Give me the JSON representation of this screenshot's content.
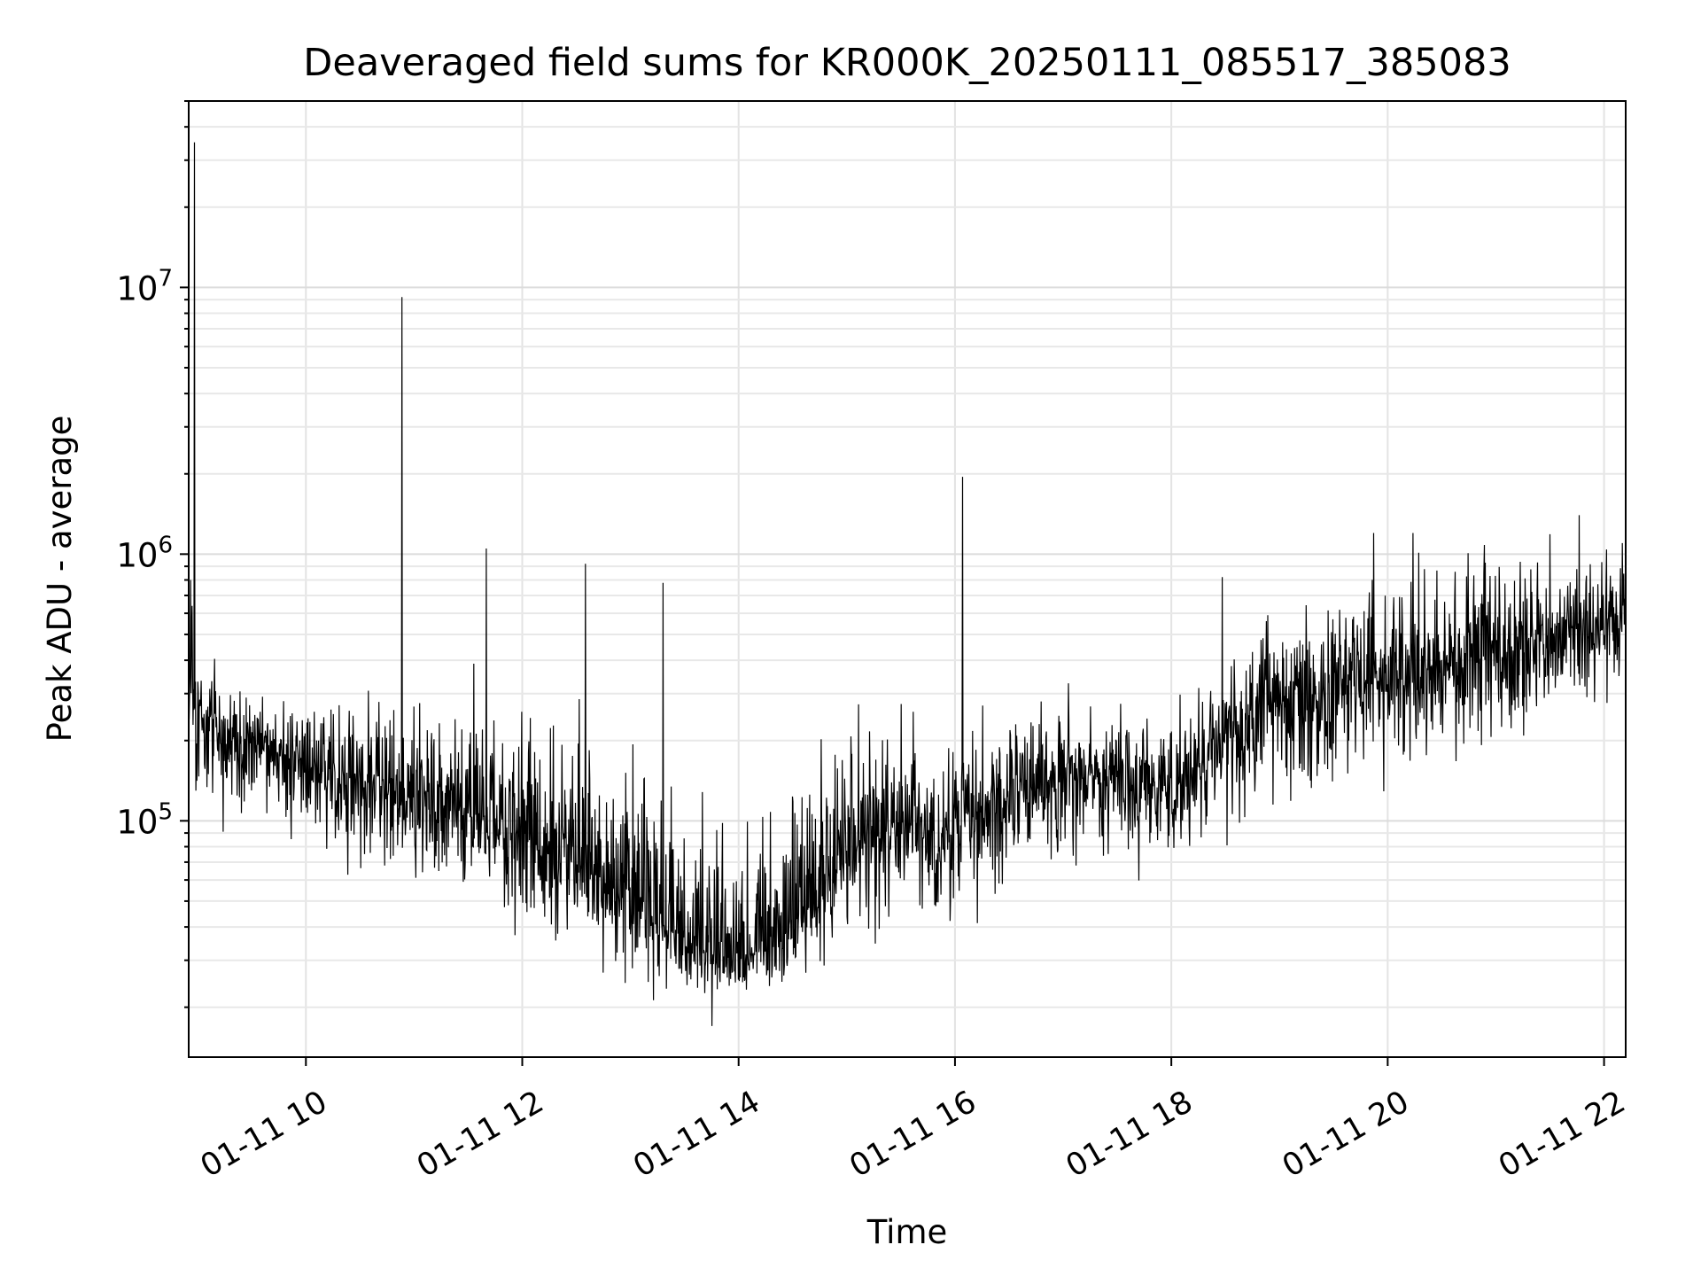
{
  "chart_data": {
    "type": "line",
    "title": "Deaveraged field sums for KR000K_20250111_085517_385083",
    "xlabel": "Time",
    "ylabel": "Peak ADU - average",
    "xlim": [
      "2025-01-11T08:55",
      "2025-01-11T22:12"
    ],
    "ylim": [
      13000,
      50000000
    ],
    "yscale": "log",
    "grid": true,
    "line_color": "#000000",
    "x_ticks": [
      {
        "t": "2025-01-11T10:00",
        "label": "01-11 10"
      },
      {
        "t": "2025-01-11T12:00",
        "label": "01-11 12"
      },
      {
        "t": "2025-01-11T14:00",
        "label": "01-11 14"
      },
      {
        "t": "2025-01-11T16:00",
        "label": "01-11 16"
      },
      {
        "t": "2025-01-11T18:00",
        "label": "01-11 18"
      },
      {
        "t": "2025-01-11T20:00",
        "label": "01-11 20"
      },
      {
        "t": "2025-01-11T22:00",
        "label": "01-11 22"
      }
    ],
    "y_ticks": [
      {
        "value": 100000,
        "base": "10",
        "exp": "5"
      },
      {
        "value": 1000000,
        "base": "10",
        "exp": "6"
      },
      {
        "value": 10000000,
        "base": "10",
        "exp": "7"
      }
    ],
    "series": [
      {
        "x": [
          "2025-01-11T08:55",
          "2025-01-11T09:00",
          "2025-01-11T09:15",
          "2025-01-11T09:30",
          "2025-01-11T09:45",
          "2025-01-11T10:00",
          "2025-01-11T10:15",
          "2025-01-11T10:30",
          "2025-01-11T10:45",
          "2025-01-11T11:00",
          "2025-01-11T11:15",
          "2025-01-11T11:30",
          "2025-01-11T11:45",
          "2025-01-11T12:00",
          "2025-01-11T12:15",
          "2025-01-11T12:30",
          "2025-01-11T12:45",
          "2025-01-11T13:00",
          "2025-01-11T13:15",
          "2025-01-11T13:30",
          "2025-01-11T13:45",
          "2025-01-11T14:00",
          "2025-01-11T14:15",
          "2025-01-11T14:30",
          "2025-01-11T14:45",
          "2025-01-11T15:00",
          "2025-01-11T15:15",
          "2025-01-11T15:30",
          "2025-01-11T15:45",
          "2025-01-11T16:00",
          "2025-01-11T16:15",
          "2025-01-11T16:30",
          "2025-01-11T16:45",
          "2025-01-11T17:00",
          "2025-01-11T17:15",
          "2025-01-11T17:30",
          "2025-01-11T17:45",
          "2025-01-11T18:00",
          "2025-01-11T18:15",
          "2025-01-11T18:30",
          "2025-01-11T18:45",
          "2025-01-11T19:00",
          "2025-01-11T19:15",
          "2025-01-11T19:30",
          "2025-01-11T19:45",
          "2025-01-11T20:00",
          "2025-01-11T20:15",
          "2025-01-11T20:30",
          "2025-01-11T20:45",
          "2025-01-11T21:00",
          "2025-01-11T21:15",
          "2025-01-11T21:30",
          "2025-01-11T21:45",
          "2025-01-11T22:00",
          "2025-01-11T22:12"
        ],
        "y": [
          350000,
          250000,
          200000,
          190000,
          180000,
          160000,
          150000,
          140000,
          130000,
          120000,
          115000,
          110000,
          100000,
          90000,
          80000,
          70000,
          60000,
          50000,
          42000,
          36000,
          32000,
          31000,
          33000,
          40000,
          55000,
          75000,
          90000,
          95000,
          90000,
          95000,
          110000,
          130000,
          145000,
          150000,
          150000,
          145000,
          140000,
          140000,
          160000,
          200000,
          250000,
          280000,
          300000,
          320000,
          340000,
          350000,
          370000,
          390000,
          400000,
          420000,
          450000,
          480000,
          500000,
          520000,
          550000
        ],
        "spread_low": [
          2.5,
          2.0,
          2.2,
          2.0,
          2.2,
          2.0,
          2.2,
          2.0,
          2.2,
          2.2,
          2.3,
          2.5,
          2.5,
          2.7,
          2.7,
          2.6,
          2.5,
          2.2,
          1.8,
          1.6,
          1.5,
          1.5,
          1.6,
          1.8,
          2.2,
          2.3,
          2.5,
          2.4,
          2.5,
          2.4,
          2.4,
          2.3,
          2.3,
          2.3,
          2.3,
          2.3,
          2.3,
          2.3,
          2.3,
          2.4,
          2.5,
          2.6,
          2.6,
          2.5,
          2.5,
          2.6,
          2.6,
          2.5,
          2.5,
          2.5,
          2.4,
          2.3,
          2.2,
          2.0,
          1.8
        ],
        "spread_high": [
          2.2,
          2.0,
          1.7,
          1.7,
          1.8,
          1.8,
          2.0,
          2.2,
          2.5,
          3.0,
          3.0,
          3.0,
          3.0,
          3.2,
          3.5,
          3.8,
          4.0,
          4.0,
          4.5,
          4.0,
          3.5,
          3.5,
          4.0,
          3.8,
          3.5,
          3.0,
          2.8,
          2.6,
          2.5,
          2.5,
          2.4,
          2.3,
          2.2,
          2.2,
          2.1,
          2.0,
          2.0,
          2.0,
          2.1,
          2.2,
          2.3,
          2.4,
          2.4,
          2.4,
          2.5,
          2.5,
          2.5,
          2.4,
          2.4,
          2.4,
          2.4,
          2.3,
          2.3,
          2.0,
          1.8
        ]
      }
    ],
    "spikes": [
      {
        "t": "2025-01-11T08:58",
        "value": 35000000
      },
      {
        "t": "2025-01-11T08:56",
        "value": 800000
      },
      {
        "t": "2025-01-11T10:53",
        "value": 9200000
      },
      {
        "t": "2025-01-11T11:40",
        "value": 1050000
      },
      {
        "t": "2025-01-11T16:04",
        "value": 1950000
      },
      {
        "t": "2025-01-11T19:52",
        "value": 1200000
      },
      {
        "t": "2025-01-11T20:14",
        "value": 1200000
      },
      {
        "t": "2025-01-11T21:46",
        "value": 1400000
      },
      {
        "t": "2025-01-11T22:10",
        "value": 1100000
      },
      {
        "t": "2025-01-11T13:45",
        "value": 17000
      },
      {
        "t": "2025-01-11T12:35",
        "value": 920000
      },
      {
        "t": "2025-01-11T13:18",
        "value": 780000
      },
      {
        "t": "2025-01-11T18:28",
        "value": 820000
      }
    ]
  }
}
